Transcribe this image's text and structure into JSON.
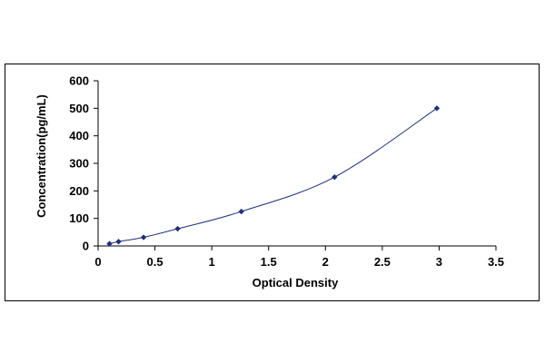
{
  "chart_data": {
    "type": "scatter",
    "title": "",
    "xlabel": "Optical Density",
    "ylabel": "Concentration(pg/mL)",
    "xlim": [
      0,
      3.5
    ],
    "ylim": [
      0,
      600
    ],
    "x_ticks": [
      0,
      0.5,
      1,
      1.5,
      2,
      2.5,
      3,
      3.5
    ],
    "x_tick_labels": [
      "0",
      "0.5",
      "1",
      "1.5",
      "2",
      "2.5",
      "3",
      "3.5"
    ],
    "y_ticks": [
      0,
      100,
      200,
      300,
      400,
      500,
      600
    ],
    "y_tick_labels": [
      "0",
      "100",
      "200",
      "300",
      "400",
      "500",
      "600"
    ],
    "grid": false,
    "legend": "none",
    "series": [
      {
        "x": [
          0.1,
          0.18,
          0.4,
          0.7,
          1.26,
          2.08,
          2.98
        ],
        "y": [
          7.8,
          15.6,
          31.2,
          62.5,
          125,
          250,
          500
        ],
        "marker": "diamond",
        "trendline": true
      }
    ],
    "colors": {
      "marker": "#1f2f7a",
      "line": "#1f2f7a",
      "axis": "#000000"
    }
  }
}
